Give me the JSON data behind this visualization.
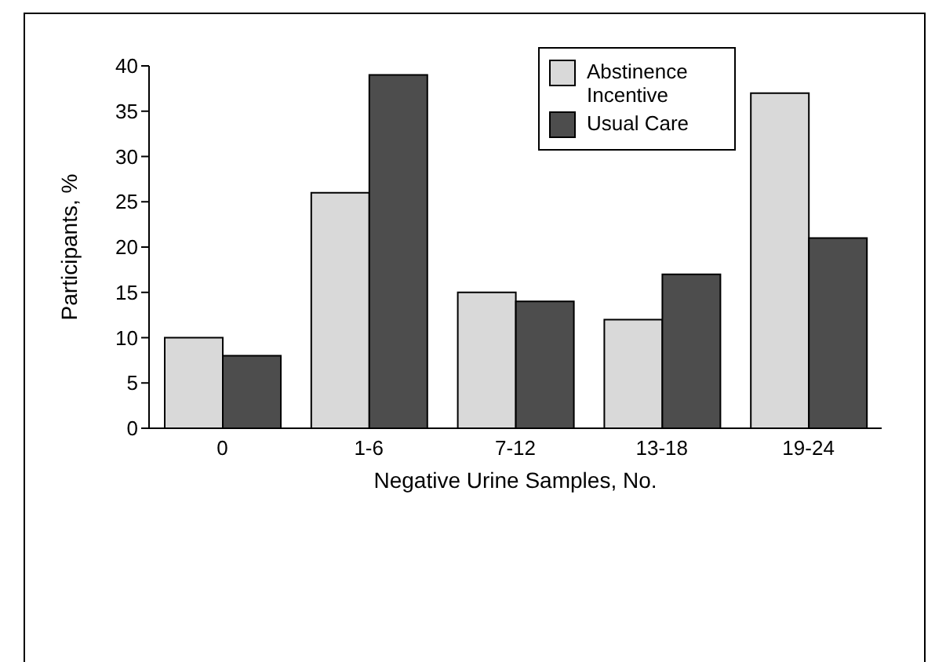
{
  "chart_data": {
    "type": "bar",
    "xlabel": "Negative Urine Samples, No.",
    "ylabel": "Participants, %",
    "categories": [
      "0",
      "1-6",
      "7-12",
      "13-18",
      "19-24"
    ],
    "series": [
      {
        "name": "Abstinence Incentive",
        "color": "#d9d9d9",
        "values": [
          10,
          26,
          15,
          12,
          37
        ]
      },
      {
        "name": "Usual Care",
        "color": "#4d4d4d",
        "values": [
          8,
          39,
          14,
          17,
          21
        ]
      }
    ],
    "ylim": [
      0,
      40
    ],
    "yticks": [
      0,
      5,
      10,
      15,
      20,
      25,
      30,
      35,
      40
    ],
    "grid": false,
    "legend": "top right"
  }
}
